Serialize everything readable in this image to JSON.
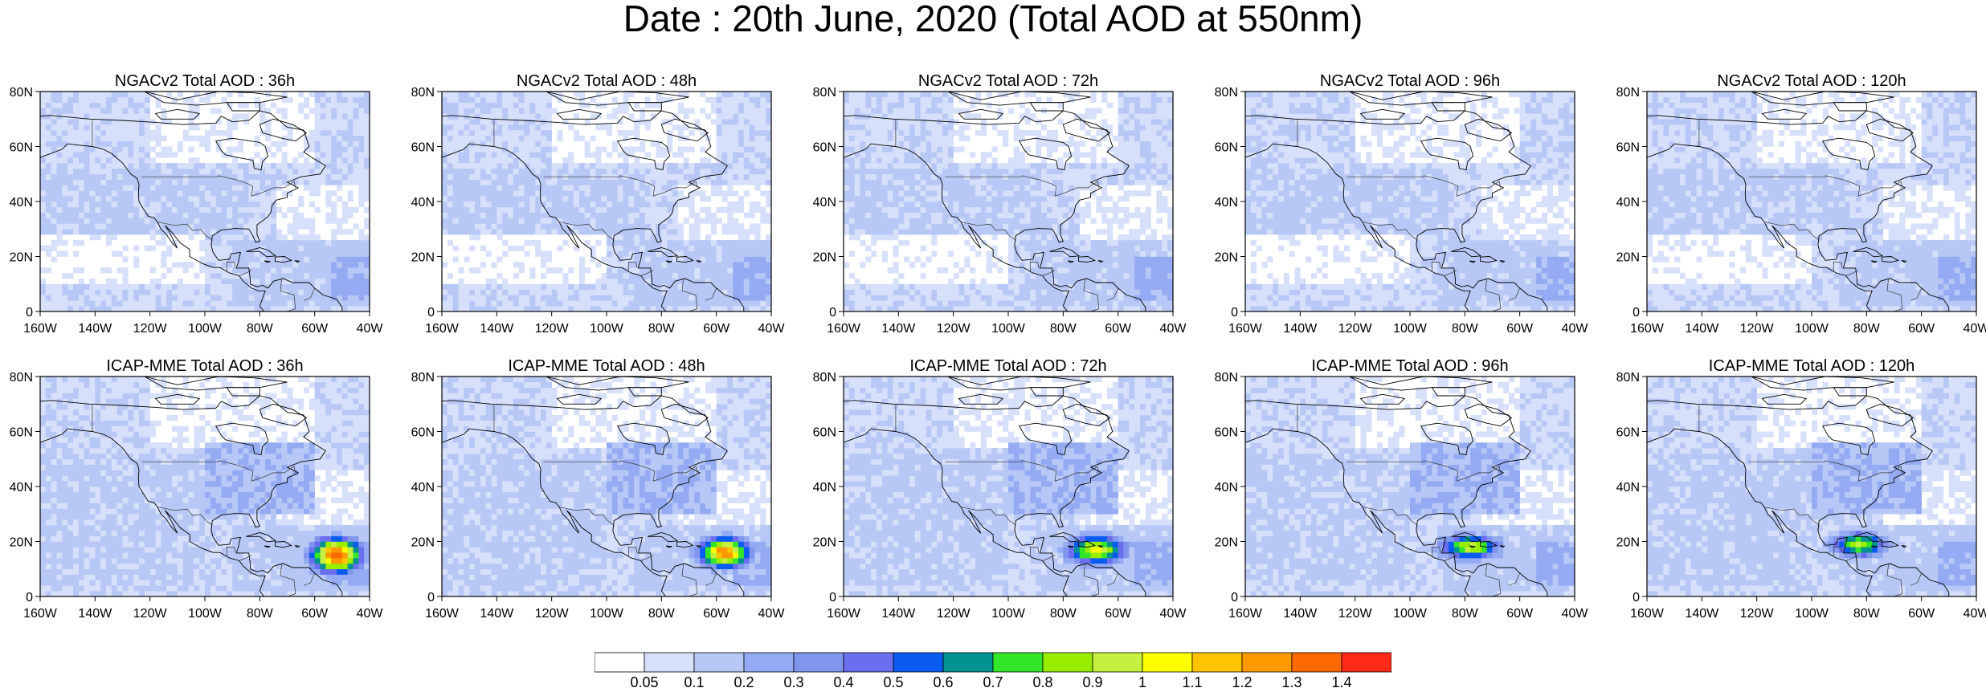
{
  "figure": {
    "title": "Date : 20th June, 2020 (Total AOD at 550nm)"
  },
  "map_extent": {
    "lon_min": -160,
    "lon_max": -40,
    "lat_min": 0,
    "lat_max": 80
  },
  "axis_ticks": {
    "lon_labels": [
      "160W",
      "140W",
      "120W",
      "100W",
      "80W",
      "60W",
      "40W"
    ],
    "lat_labels": [
      "0",
      "20N",
      "40N",
      "60N",
      "80N"
    ]
  },
  "panels": [
    {
      "title": "NGACv2 Total AOD : 36h",
      "plume": null
    },
    {
      "title": "NGACv2 Total AOD : 48h",
      "plume": null
    },
    {
      "title": "NGACv2 Total AOD : 72h",
      "plume": null
    },
    {
      "title": "NGACv2 Total AOD : 96h",
      "plume": null
    },
    {
      "title": "NGACv2 Total AOD : 120h",
      "plume": null
    },
    {
      "title": "ICAP-MME Total AOD : 36h",
      "plume": {
        "lon": -52,
        "lat": 15,
        "rlon": 10,
        "rlat": 7,
        "peak": 1.4
      }
    },
    {
      "title": "ICAP-MME Total AOD : 48h",
      "plume": {
        "lon": -57,
        "lat": 16,
        "rlon": 10,
        "rlat": 6,
        "peak": 1.3
      }
    },
    {
      "title": "ICAP-MME Total AOD : 72h",
      "plume": {
        "lon": -68,
        "lat": 17,
        "rlon": 12,
        "rlat": 6,
        "peak": 1.0
      }
    },
    {
      "title": "ICAP-MME Total AOD : 96h",
      "plume": {
        "lon": -78,
        "lat": 18,
        "rlon": 12,
        "rlat": 5,
        "peak": 0.95
      }
    },
    {
      "title": "ICAP-MME Total AOD : 120h",
      "plume": {
        "lon": -83,
        "lat": 19,
        "rlon": 11,
        "rlat": 5,
        "peak": 0.9
      }
    }
  ],
  "colorbar": {
    "labels": [
      "0.05",
      "0.1",
      "0.2",
      "0.3",
      "0.4",
      "0.5",
      "0.6",
      "0.7",
      "0.8",
      "0.9",
      "1",
      "1.1",
      "1.2",
      "1.3",
      "1.4"
    ],
    "colors": [
      "#ffffff",
      "#d6e0fa",
      "#b8c8f6",
      "#94abf3",
      "#8096ee",
      "#6a6ff0",
      "#0a5cf0",
      "#00938f",
      "#33e62a",
      "#99ee00",
      "#c6f03f",
      "#ffff00",
      "#ffc300",
      "#ff9900",
      "#ff6a00",
      "#ff2a1a"
    ]
  }
}
